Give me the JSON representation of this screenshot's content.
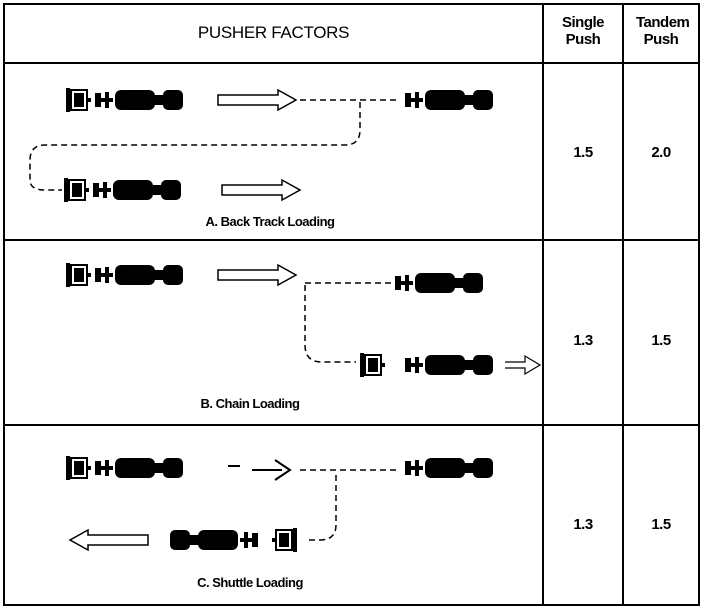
{
  "table": {
    "header": [
      "PUSHER FACTORS",
      "Single Push",
      "Tandem Push"
    ],
    "rows": [
      [
        "A. Back Track Loading",
        "1.5",
        "2.0"
      ],
      [
        "B. Chain Loading",
        "1.3",
        "1.5"
      ],
      [
        "C. Shuttle Loading",
        "1.3",
        "1.5"
      ]
    ]
  }
}
